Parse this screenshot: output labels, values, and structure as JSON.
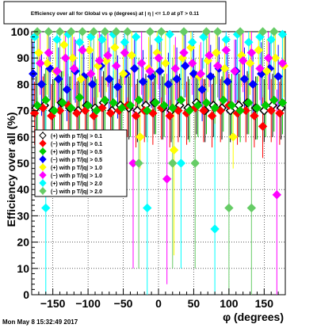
{
  "chart_data": {
    "type": "scatter",
    "title": "Efficiency over all for Global vs φ (degrees) at | η | <= 1.0 at pT > 0.11",
    "xlabel": "φ (degrees)",
    "ylabel": "Efficiency over all (%)",
    "xlim": [
      -180,
      180
    ],
    "ylim": [
      0,
      100
    ],
    "xticks": [
      -150,
      -100,
      -50,
      0,
      50,
      100,
      150
    ],
    "xtick_labels": [
      "−150",
      "−100",
      "−50",
      "0",
      "50",
      "100",
      "150"
    ],
    "yticks": [
      0,
      10,
      20,
      30,
      40,
      50,
      60,
      70,
      80,
      90,
      100
    ],
    "ytick_labels": [
      "0",
      "10",
      "20",
      "30",
      "40",
      "50",
      "60",
      "70",
      "80",
      "90",
      "100"
    ],
    "grid": true,
    "legend_position": "left-middle",
    "series": [
      {
        "name": "(+) with p T/|q| > 0.1",
        "color": "#000000",
        "marker": "diamond-open",
        "x": [
          -174,
          -162,
          -150,
          -138,
          -126,
          -114,
          -102,
          -90,
          -78,
          -66,
          -54,
          -42,
          -30,
          -18,
          -6,
          6,
          18,
          30,
          42,
          54,
          66,
          78,
          90,
          102,
          114,
          126,
          138,
          150,
          162,
          174
        ],
        "y": [
          71,
          72,
          70,
          73,
          71,
          70,
          72,
          71,
          73,
          70,
          72,
          71,
          70,
          72,
          73,
          71,
          70,
          72,
          71,
          73,
          70,
          72,
          71,
          70,
          72,
          73,
          71,
          70,
          72,
          71
        ]
      },
      {
        "name": "(−) with p T/|q| > 0.1",
        "color": "#ff0000",
        "marker": "diamond",
        "x": [
          -176,
          -164,
          -152,
          -140,
          -128,
          -116,
          -104,
          -92,
          -80,
          -68,
          -56,
          -44,
          -32,
          -20,
          -8,
          4,
          16,
          28,
          40,
          52,
          64,
          76,
          88,
          100,
          112,
          124,
          136,
          148,
          160,
          172
        ],
        "y": [
          69,
          71,
          68,
          70,
          72,
          69,
          70,
          68,
          71,
          69,
          70,
          72,
          68,
          70,
          69,
          71,
          68,
          70,
          69,
          71,
          70,
          68,
          70,
          72,
          69,
          70,
          68,
          64,
          70,
          69
        ]
      },
      {
        "name": "(+) with p T/|q| > 0.5",
        "color": "#00cc00",
        "marker": "diamond",
        "x": [
          -172,
          -160,
          -148,
          -136,
          -124,
          -112,
          -100,
          -88,
          -76,
          -64,
          -52,
          -40,
          -28,
          -16,
          -4,
          8,
          20,
          32,
          44,
          56,
          68,
          80,
          92,
          104,
          116,
          128,
          140,
          152,
          164,
          176
        ],
        "y": [
          72,
          74,
          70,
          73,
          71,
          75,
          72,
          70,
          74,
          73,
          71,
          72,
          74,
          70,
          73,
          72,
          71,
          74,
          70,
          72,
          73,
          71,
          74,
          72,
          70,
          73,
          71,
          72,
          74,
          73
        ]
      },
      {
        "name": "(−) with p T/|q| > 0.5",
        "color": "#0000ff",
        "marker": "diamond",
        "x": [
          -178,
          -166,
          -154,
          -142,
          -130,
          -118,
          -106,
          -94,
          -82,
          -70,
          -58,
          -46,
          -34,
          -22,
          -10,
          2,
          14,
          26,
          38,
          50,
          62,
          74,
          86,
          98,
          110,
          122,
          134,
          146,
          158,
          170
        ],
        "y": [
          84,
          80,
          86,
          82,
          78,
          85,
          83,
          80,
          87,
          82,
          79,
          84,
          86,
          81,
          83,
          85,
          80,
          82,
          87,
          84,
          78,
          83,
          86,
          81,
          85,
          82,
          80,
          84,
          86,
          83
        ]
      },
      {
        "name": "(+) with p T/|q| > 1.0",
        "color": "#ffff00",
        "marker": "diamond",
        "x": [
          -170,
          -158,
          -146,
          -134,
          -122,
          -110,
          -98,
          -86,
          -74,
          -62,
          -50,
          -38,
          -26,
          -14,
          -2,
          10,
          22,
          34,
          46,
          58,
          70,
          82,
          94,
          106,
          118,
          130,
          142,
          154,
          166,
          178
        ],
        "y": [
          92,
          88,
          85,
          95,
          90,
          82,
          93,
          87,
          89,
          94,
          84,
          91,
          60,
          86,
          92,
          88,
          55,
          90,
          94,
          83,
          89,
          92,
          86,
          60,
          91,
          88,
          93,
          85,
          90,
          87
        ]
      },
      {
        "name": "(−) with p T/|q| > 1.0",
        "color": "#ff00ff",
        "marker": "diamond",
        "x": [
          -168,
          -156,
          -144,
          -132,
          -120,
          -108,
          -96,
          -84,
          -72,
          -60,
          -48,
          -36,
          -24,
          -12,
          0,
          12,
          24,
          36,
          48,
          60,
          72,
          84,
          96,
          108,
          120,
          132,
          144,
          156,
          168,
          176
        ],
        "y": [
          88,
          92,
          85,
          90,
          86,
          93,
          84,
          89,
          91,
          87,
          92,
          50,
          88,
          85,
          90,
          44,
          86,
          92,
          88,
          84,
          91,
          87,
          93,
          85,
          89,
          92,
          86,
          90,
          38,
          88
        ]
      },
      {
        "name": "(+) with p T/|q| > 2.0",
        "color": "#00ffff",
        "marker": "diamond",
        "x": [
          -176,
          -160,
          -144,
          -128,
          -112,
          -96,
          -80,
          -64,
          -48,
          -32,
          -16,
          0,
          16,
          32,
          48,
          64,
          80,
          96,
          112,
          128,
          144,
          160,
          176
        ],
        "y": [
          98,
          33,
          97,
          99,
          96,
          98,
          97,
          99,
          96,
          98,
          33,
          97,
          99,
          50,
          96,
          98,
          25,
          97,
          99,
          96,
          98,
          97,
          99
        ]
      },
      {
        "name": "(−) with p T/|q| > 2.0",
        "color": "#66cc66",
        "marker": "diamond",
        "x": [
          -172,
          -156,
          -140,
          -124,
          -108,
          -92,
          -76,
          -60,
          -44,
          -28,
          -12,
          4,
          20,
          36,
          52,
          68,
          84,
          100,
          116,
          132,
          148,
          164
        ],
        "y": [
          100,
          100,
          100,
          100,
          100,
          100,
          100,
          100,
          100,
          50,
          100,
          100,
          50,
          100,
          50,
          100,
          100,
          33,
          100,
          33,
          100,
          100
        ]
      }
    ]
  },
  "footer": {
    "timestamp": "Mon May  8 15:32:49 2017"
  }
}
